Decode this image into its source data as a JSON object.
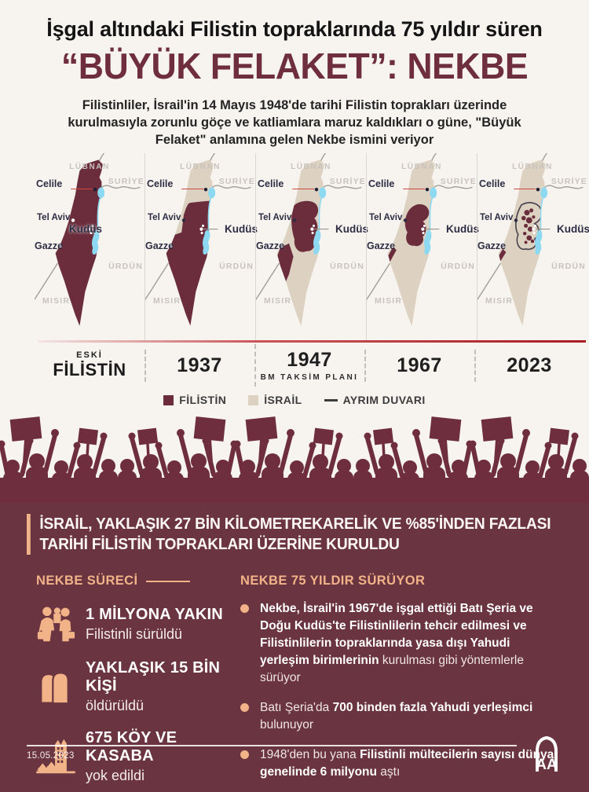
{
  "header": {
    "title_line1": "İşgal altındaki Filistin topraklarında 75 yıldır süren",
    "title_line2": "“BÜYÜK FELAKET”: NEKBE",
    "intro": "Filistinliler, İsrail'in 14 Mayıs 1948'de tarihi Filistin toprakları üzerinde\nkurulmasıyla zorunlu göçe ve katliamlara maruz kaldıkları o güne, \"Büyük\nFelaket\" anlamına gelen Nekbe ismini veriyor"
  },
  "maps": {
    "labels": {
      "lubnan": "LÜBNAN",
      "suriye": "SURİYE",
      "urdun": "ÜRDÜN",
      "misir": "MISIR",
      "celile": "Celile",
      "tel_aviv": "Tel Aviv",
      "kudus": "Kudüs",
      "gazze": "Gazze"
    },
    "timeline": [
      {
        "label_top": "ESKİ",
        "label": "FİLİSTİN"
      },
      {
        "label": "1937"
      },
      {
        "label": "1947",
        "sublabel": "BM TAKSİM PLANI"
      },
      {
        "label": "1967"
      },
      {
        "label": "2023"
      }
    ]
  },
  "legend": [
    {
      "label": "FİLİSTİN",
      "color": "#6b2d3c"
    },
    {
      "label": "İSRAİL",
      "color": "#ddd2c2"
    },
    {
      "label": "AYRIM DUVARI",
      "color": "#3c3c3c"
    }
  ],
  "colors": {
    "palestine": "#6b2d3c",
    "israel": "#ddd2c2",
    "water": "#8ed9f2",
    "accent_peach": "#f2b388",
    "section_bg": "#6a3440",
    "page_bg": "#f7f4f0"
  },
  "stats_section": {
    "headline": "İSRAİL, YAKLAŞIK 27 BİN KİLOMETREKARELİK VE %85'İNDEN FAZLASI\nTARİHİ FİLİSTİN TOPRAKLARI ÜZERİNE KURULDU",
    "left": {
      "heading": "NEKBE SÜRECİ",
      "items": [
        {
          "icon": "refugee-family-icon",
          "bold": "1 MİLYONA YAKIN",
          "text": "Filistinli sürüldü"
        },
        {
          "icon": "tombstones-icon",
          "bold": "YAKLAŞIK 15 BİN KİŞİ",
          "text": "öldürüldü"
        },
        {
          "icon": "destroyed-village-icon",
          "bold": "675 KÖY VE KASABA",
          "text": "yok edildi"
        }
      ]
    },
    "right": {
      "heading": "NEKBE 75 YILDIR SÜRÜYOR",
      "bullets": [
        [
          {
            "t": "Nekbe, İsrail'in 1967'de işgal ettiği Batı Şeria ve Doğu Kudüs'te Filistinlilerin tehcir edilmesi ve Filistinlilerin topraklarında yasa dışı Yahudi yerleşim birimlerinin",
            "b": true
          },
          {
            "t": " kurulması gibi yöntemlerle sürüyor",
            "b": false
          }
        ],
        [
          {
            "t": "Batı Şeria'da ",
            "b": false
          },
          {
            "t": "700 binden fazla Yahudi yerleşimci",
            "b": true
          },
          {
            "t": " bulunuyor",
            "b": false
          }
        ],
        [
          {
            "t": "1948'den bu yana ",
            "b": false
          },
          {
            "t": "Filistinli mültecilerin sayısı dünya genelinde 6 milyonu",
            "b": true
          },
          {
            "t": " aştı",
            "b": false
          }
        ]
      ]
    }
  },
  "footer": {
    "date": "15.05.2023",
    "logo_text": "AA"
  }
}
